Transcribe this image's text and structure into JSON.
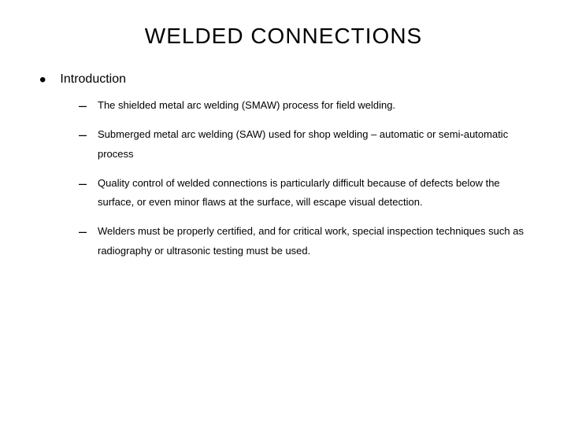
{
  "title": "WELDED CONNECTIONS",
  "section_heading": "Introduction",
  "sub_items": [
    "The shielded metal arc welding (SMAW) process for field welding.",
    "Submerged metal arc welding (SAW) used for shop welding – automatic or semi-automatic process",
    "Quality control of welded connections is particularly difficult because of defects below the surface, or even minor flaws at the surface, will escape visual detection.",
    "Welders must be properly certified, and for critical work, special inspection techniques such as radiography or ultrasonic testing must be used."
  ],
  "colors": {
    "background": "#ffffff",
    "text": "#000000"
  },
  "typography": {
    "title_fontsize": 28,
    "heading_fontsize": 16,
    "body_fontsize": 13,
    "font_family": "Arial"
  }
}
